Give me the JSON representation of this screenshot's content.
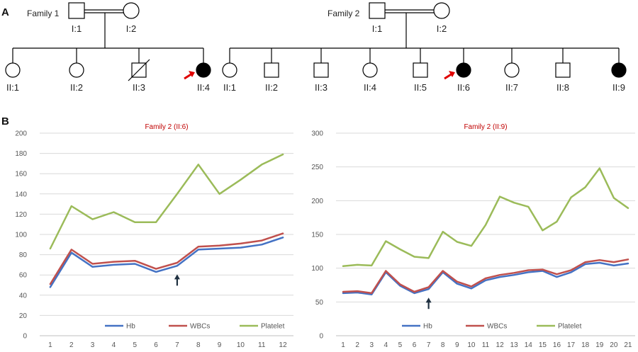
{
  "panels": {
    "a": "A",
    "b": "B"
  },
  "pedigrees": [
    {
      "family_label": "Family 1",
      "parents": [
        {
          "id": "I:1",
          "sex": "male",
          "affected": false
        },
        {
          "id": "I:2",
          "sex": "female",
          "affected": false
        }
      ],
      "children": [
        {
          "id": "II:1",
          "sex": "female",
          "affected": false,
          "deceased": false,
          "proband": false
        },
        {
          "id": "II:2",
          "sex": "female",
          "affected": false,
          "deceased": false,
          "proband": false
        },
        {
          "id": "II:3",
          "sex": "male",
          "affected": false,
          "deceased": true,
          "proband": false
        },
        {
          "id": "II:4",
          "sex": "female",
          "affected": true,
          "deceased": false,
          "proband": true
        }
      ]
    },
    {
      "family_label": "Family 2",
      "parents": [
        {
          "id": "I:1",
          "sex": "male",
          "affected": false
        },
        {
          "id": "I:2",
          "sex": "female",
          "affected": false
        }
      ],
      "children": [
        {
          "id": "II:1",
          "sex": "female",
          "affected": false,
          "deceased": false,
          "proband": false
        },
        {
          "id": "II:2",
          "sex": "male",
          "affected": false,
          "deceased": false,
          "proband": false
        },
        {
          "id": "II:3",
          "sex": "male",
          "affected": false,
          "deceased": false,
          "proband": false
        },
        {
          "id": "II:4",
          "sex": "female",
          "affected": false,
          "deceased": false,
          "proband": false
        },
        {
          "id": "II:5",
          "sex": "male",
          "affected": false,
          "deceased": false,
          "proband": false
        },
        {
          "id": "II:6",
          "sex": "female",
          "affected": true,
          "deceased": false,
          "proband": true
        },
        {
          "id": "II:7",
          "sex": "female",
          "affected": false,
          "deceased": false,
          "proband": false
        },
        {
          "id": "II:8",
          "sex": "male",
          "affected": false,
          "deceased": false,
          "proband": false
        },
        {
          "id": "II:9",
          "sex": "female",
          "affected": true,
          "deceased": false,
          "proband": false
        }
      ]
    }
  ],
  "colors": {
    "Hb": "#4472c4",
    "WBCs": "#c0504d",
    "Platelet": "#9bbb59",
    "grid": "#d9d9d9",
    "axis": "#bfbfbf",
    "title": "#c00000",
    "proband_arrow": "#e00000",
    "time_arrow": "#1f3040"
  },
  "chart_data": [
    {
      "type": "line",
      "title": "Family 2 (II:6)",
      "categories": [
        "1",
        "2",
        "3",
        "4",
        "5",
        "6",
        "7",
        "8",
        "9",
        "10",
        "11",
        "12"
      ],
      "ylim": [
        0,
        200
      ],
      "yticks": [
        "0",
        "20",
        "40",
        "60",
        "80",
        "100",
        "120",
        "140",
        "160",
        "180",
        "200"
      ],
      "grid": true,
      "legend": "bottom",
      "marker_at_category": 7,
      "series": [
        {
          "name": "Hb",
          "values": [
            48,
            82,
            68,
            70,
            71,
            63,
            69,
            85,
            86,
            87,
            90,
            97
          ]
        },
        {
          "name": "WBCs",
          "values": [
            51,
            85,
            71,
            73,
            74,
            66,
            72,
            88,
            89,
            91,
            94,
            101
          ]
        },
        {
          "name": "Platelet",
          "values": [
            86,
            128,
            115,
            122,
            112,
            112,
            140,
            169,
            140,
            154,
            169,
            179
          ]
        }
      ]
    },
    {
      "type": "line",
      "title": "Family 2 (II:9)",
      "categories": [
        "1",
        "2",
        "3",
        "4",
        "5",
        "6",
        "7",
        "8",
        "9",
        "10",
        "11",
        "12",
        "13",
        "14",
        "15",
        "16",
        "17",
        "18",
        "19",
        "20",
        "21"
      ],
      "ylim": [
        0,
        300
      ],
      "yticks": [
        "0",
        "50",
        "100",
        "150",
        "200",
        "250",
        "300"
      ],
      "grid": true,
      "legend": "bottom",
      "marker_at_category": 7,
      "series": [
        {
          "name": "Hb",
          "values": [
            63,
            64,
            61,
            94,
            74,
            63,
            69,
            94,
            77,
            70,
            82,
            87,
            90,
            94,
            96,
            87,
            94,
            106,
            108,
            104,
            107
          ]
        },
        {
          "name": "WBCs",
          "values": [
            65,
            66,
            63,
            96,
            76,
            65,
            72,
            96,
            80,
            73,
            85,
            90,
            93,
            97,
            98,
            91,
            97,
            109,
            112,
            109,
            113
          ]
        },
        {
          "name": "Platelet",
          "values": [
            103,
            105,
            104,
            140,
            128,
            117,
            115,
            154,
            139,
            133,
            164,
            206,
            197,
            191,
            156,
            169,
            205,
            220,
            248,
            204,
            189
          ]
        }
      ]
    }
  ]
}
